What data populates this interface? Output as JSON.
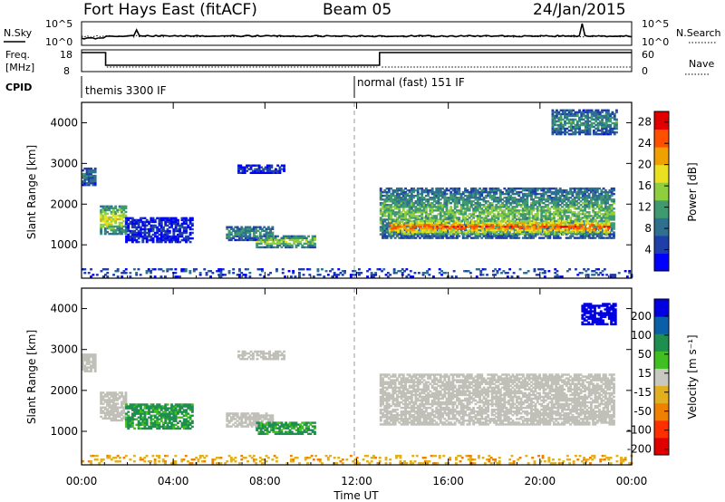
{
  "header": {
    "station": "Fort Hays East (fitACF)",
    "beam": "Beam 05",
    "date": "24/Jan/2015"
  },
  "top_strip": {
    "nsky_label": "N.Sky",
    "nsky_tick_top": "10^5",
    "nsky_tick_bottom": "10^0",
    "nsearch_label": "N.Search",
    "nsearch_tick_top": "10^5",
    "nsearch_tick_bottom": "10^0",
    "freq_label_line1": "Freq.",
    "freq_label_line2": "[MHz]",
    "freq_tick_top": "18",
    "freq_tick_bottom": "8",
    "nave_label": "Nave",
    "nave_tick_top": "60",
    "nave_tick_bottom": "0",
    "cpid_label": "CPID",
    "cpid_left": "themis 3300 IF",
    "cpid_right": "normal (fast) 151 IF"
  },
  "colors": {
    "power_scale": [
      "#0000ff",
      "#1f3fa8",
      "#2f6f8f",
      "#3f9a6f",
      "#8fcf3f",
      "#e8e020",
      "#f0a000",
      "#ff5000",
      "#e00000"
    ],
    "velocity_scale": [
      "#0000e0",
      "#0a60a8",
      "#1f8f4f",
      "#40c020",
      "#c8c8c0",
      "#e0b020",
      "#f08000",
      "#ff3000",
      "#e00000"
    ],
    "ground_scatter": "#c0c0b8"
  },
  "chart_data": [
    {
      "type": "heatmap",
      "name": "power-panel",
      "ylabel": "Slant Range [km]",
      "xlabel": "",
      "x_ticks": [
        "00:00",
        "04:00",
        "08:00",
        "12:00",
        "16:00",
        "20:00",
        "00:00"
      ],
      "y_ticks": [
        "1000",
        "2000",
        "3000",
        "4000"
      ],
      "xlim_hours": [
        0,
        24
      ],
      "ylim_km": [
        180,
        4500
      ],
      "colorbar_label": "Power [dB]",
      "colorbar_ticks": [
        "4",
        "8",
        "12",
        "16",
        "20",
        "24",
        "28"
      ],
      "colorbar_range": [
        0,
        30
      ],
      "regions": [
        {
          "t0": 0.0,
          "t1": 0.6,
          "r0": 2450,
          "r1": 2900,
          "level": 8
        },
        {
          "t0": 0.8,
          "t1": 1.9,
          "r0": 1250,
          "r1": 1950,
          "level": 16
        },
        {
          "t0": 1.9,
          "t1": 4.8,
          "r0": 1050,
          "r1": 1650,
          "level": 4
        },
        {
          "t0": 6.3,
          "t1": 8.3,
          "r0": 1100,
          "r1": 1450,
          "level": 10
        },
        {
          "t0": 7.6,
          "t1": 10.2,
          "r0": 920,
          "r1": 1200,
          "level": 14
        },
        {
          "t0": 6.8,
          "t1": 8.8,
          "r0": 2750,
          "r1": 2950,
          "level": 4
        },
        {
          "t0": 13.0,
          "t1": 23.2,
          "r0": 1150,
          "r1": 2400,
          "level": 12
        },
        {
          "t0": 13.4,
          "t1": 23.0,
          "r0": 1250,
          "r1": 1600,
          "level": 22
        },
        {
          "t0": 20.5,
          "t1": 23.3,
          "r0": 3700,
          "r1": 4300,
          "level": 10
        },
        {
          "t0": 0.0,
          "t1": 24.0,
          "r0": 200,
          "r1": 420,
          "level": 6
        }
      ]
    },
    {
      "type": "heatmap",
      "name": "velocity-panel",
      "ylabel": "Slant Range [km]",
      "xlabel": "Time UT",
      "x_ticks": [
        "00:00",
        "04:00",
        "08:00",
        "12:00",
        "16:00",
        "20:00",
        "00:00"
      ],
      "y_ticks": [
        "1000",
        "2000",
        "3000",
        "4000"
      ],
      "xlim_hours": [
        0,
        24
      ],
      "ylim_km": [
        180,
        4500
      ],
      "colorbar_label": "Velocity [m s⁻¹]",
      "colorbar_ticks": [
        "200",
        "100",
        "50",
        "15",
        "-15",
        "-50",
        "-100",
        "-200"
      ],
      "regions": [
        {
          "t0": 0.0,
          "t1": 0.6,
          "r0": 2450,
          "r1": 2900,
          "vel": 0
        },
        {
          "t0": 0.8,
          "t1": 1.9,
          "r0": 1250,
          "r1": 1950,
          "vel": 0
        },
        {
          "t0": 1.9,
          "t1": 4.8,
          "r0": 1050,
          "r1": 1650,
          "vel": 60
        },
        {
          "t0": 6.3,
          "t1": 8.3,
          "r0": 1100,
          "r1": 1450,
          "vel": 0
        },
        {
          "t0": 7.6,
          "t1": 10.2,
          "r0": 920,
          "r1": 1200,
          "vel": 60
        },
        {
          "t0": 6.8,
          "t1": 8.8,
          "r0": 2750,
          "r1": 2950,
          "vel": 0
        },
        {
          "t0": 13.0,
          "t1": 23.2,
          "r0": 1150,
          "r1": 2400,
          "vel": 0
        },
        {
          "t0": 21.8,
          "t1": 23.3,
          "r0": 3600,
          "r1": 4100,
          "vel": 220
        },
        {
          "t0": 0.0,
          "t1": 24.0,
          "r0": 200,
          "r1": 420,
          "vel": -40
        }
      ]
    }
  ]
}
